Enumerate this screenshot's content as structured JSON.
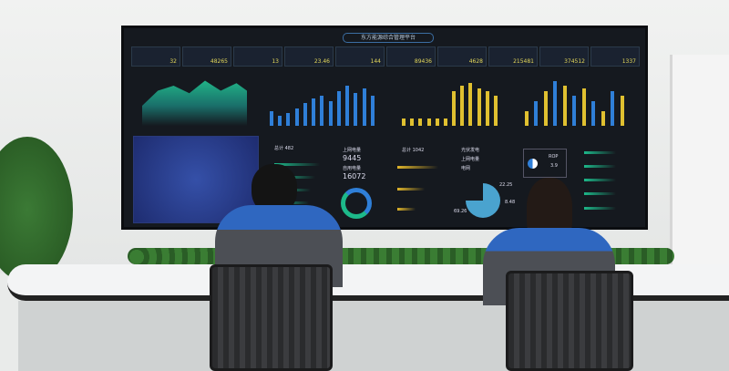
{
  "screen": {
    "title": "东方能源综合管理平台",
    "kpis": [
      "32",
      "48265",
      "13",
      "23.46",
      "144",
      "89436",
      "4628",
      "215481",
      "374512",
      "1337"
    ],
    "panels": {
      "power_distribution": {
        "label_1": "上网电量",
        "value_1": "9445",
        "label_2": "自用电量",
        "value_2": "16072"
      },
      "total_left": "总计 482",
      "total_mid": "总计 1042",
      "legend": [
        "光伏发电",
        "上网电量",
        "电网"
      ],
      "pie_values": [
        "22.25",
        "8.48",
        "69.26"
      ],
      "rop": {
        "label": "ROP",
        "value": "3.9"
      }
    }
  },
  "colors": {
    "accent_green": "#1db98a",
    "accent_blue": "#2f7fd8",
    "accent_yellow": "#e0b52a"
  }
}
